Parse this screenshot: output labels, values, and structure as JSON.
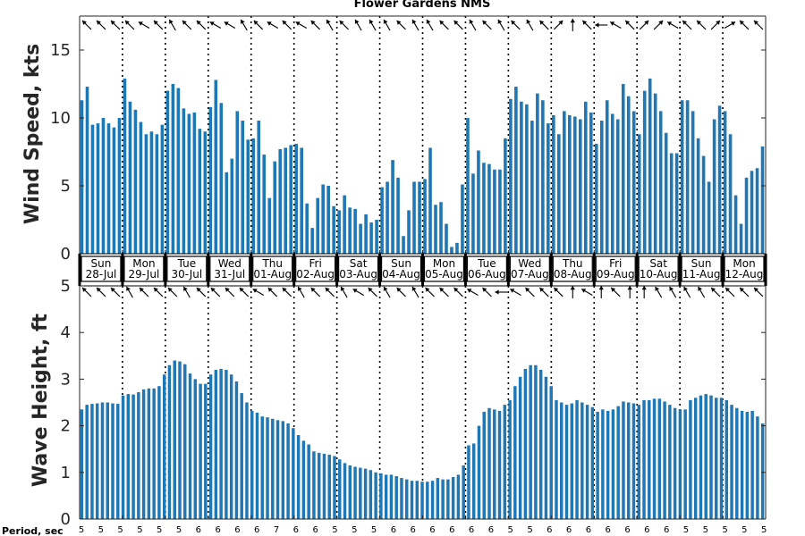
{
  "chart_data": [
    {
      "type": "bar",
      "title": "Flower Gardens NMS",
      "ylabel": "Wind Speed, kts",
      "ylim": [
        0,
        17.5
      ],
      "yticks": [
        "0",
        "5",
        "10",
        "15"
      ],
      "bar_color": "#1f77b4",
      "values": [
        11.3,
        12.3,
        9.5,
        9.6,
        10,
        9.6,
        9.3,
        10,
        12.9,
        11.2,
        10.6,
        9.7,
        8.8,
        9,
        8.8,
        9.5,
        12,
        12.5,
        12.2,
        10.7,
        10.3,
        10.4,
        9.2,
        9,
        10.8,
        12.8,
        11.1,
        6,
        7,
        10.5,
        9.8,
        8.4,
        8.5,
        9.8,
        7.3,
        4.1,
        6.8,
        7.7,
        7.8,
        8,
        8.1,
        7.8,
        3.7,
        1.9,
        4.1,
        5.1,
        5,
        3.5,
        3.2,
        4.3,
        3.4,
        3.3,
        2.2,
        2.9,
        2.3,
        2.5,
        4.9,
        5.3,
        6.9,
        5.6,
        1.3,
        3.2,
        5.3,
        5.3,
        5.5,
        7.8,
        3.6,
        3.8,
        2.2,
        0.5,
        0.8,
        5.1,
        10,
        5.9,
        7.6,
        6.7,
        6.6,
        6.2,
        6.2,
        8.5,
        11.4,
        12.3,
        11.2,
        11,
        9.8,
        11.8,
        11.3,
        9.6,
        10.2,
        8.8,
        10.5,
        10.2,
        10.1,
        9.9,
        11.2,
        10.4,
        8.1,
        9.8,
        11.3,
        10.3,
        9.9,
        12.5,
        11.6,
        10.5,
        8.8,
        12,
        12.9,
        11.8,
        10.5,
        8.9,
        7.4,
        7.4,
        11.3,
        11.3,
        10.5,
        8.5,
        7.2,
        5.3,
        9.9,
        10.9,
        10.5,
        8.8,
        4.3,
        2.2,
        5.6,
        6.1,
        6.3,
        7.9
      ]
    },
    {
      "type": "bar",
      "ylabel": "Wave Height, ft",
      "ylim": [
        0,
        5
      ],
      "yticks": [
        "0",
        "1",
        "2",
        "3",
        "4",
        "5"
      ],
      "bar_color": "#1f77b4",
      "values": [
        2.35,
        2.45,
        2.47,
        2.48,
        2.5,
        2.5,
        2.48,
        2.47,
        2.65,
        2.68,
        2.67,
        2.72,
        2.78,
        2.8,
        2.8,
        2.85,
        3.1,
        3.3,
        3.4,
        3.38,
        3.32,
        3.12,
        3.0,
        2.9,
        2.9,
        3.1,
        3.2,
        3.22,
        3.2,
        3.1,
        2.95,
        2.7,
        2.5,
        2.32,
        2.28,
        2.2,
        2.18,
        2.15,
        2.12,
        2.1,
        2.05,
        1.95,
        1.8,
        1.68,
        1.6,
        1.45,
        1.42,
        1.4,
        1.38,
        1.35,
        1.28,
        1.2,
        1.15,
        1.12,
        1.1,
        1.08,
        1.05,
        1.0,
        0.98,
        0.95,
        0.95,
        0.92,
        0.88,
        0.85,
        0.82,
        0.82,
        0.8,
        0.8,
        0.82,
        0.88,
        0.85,
        0.85,
        0.9,
        0.95,
        1.15,
        1.58,
        1.62,
        2.0,
        2.3,
        2.38,
        2.35,
        2.32,
        2.45,
        2.55,
        2.85,
        3.05,
        3.22,
        3.3,
        3.3,
        3.2,
        3.05,
        2.85,
        2.55,
        2.5,
        2.45,
        2.48,
        2.55,
        2.5,
        2.45,
        2.4,
        2.3,
        2.35,
        2.32,
        2.35,
        2.42,
        2.52,
        2.5,
        2.48,
        2.45,
        2.55,
        2.55,
        2.58,
        2.58,
        2.52,
        2.45,
        2.38,
        2.35,
        2.35,
        2.55,
        2.6,
        2.65,
        2.68,
        2.65,
        2.6,
        2.6,
        2.55,
        2.45,
        2.38,
        2.32,
        2.3,
        2.32,
        2.2,
        2.05
      ]
    }
  ],
  "days": [
    {
      "day": "Sun",
      "date": "28-Jul"
    },
    {
      "day": "Mon",
      "date": "29-Jul"
    },
    {
      "day": "Tue",
      "date": "30-Jul"
    },
    {
      "day": "Wed",
      "date": "31-Jul"
    },
    {
      "day": "Thu",
      "date": "01-Aug"
    },
    {
      "day": "Fri",
      "date": "02-Aug"
    },
    {
      "day": "Sat",
      "date": "03-Aug"
    },
    {
      "day": "Sun",
      "date": "04-Aug"
    },
    {
      "day": "Mon",
      "date": "05-Aug"
    },
    {
      "day": "Tue",
      "date": "06-Aug"
    },
    {
      "day": "Wed",
      "date": "07-Aug"
    },
    {
      "day": "Thu",
      "date": "08-Aug"
    },
    {
      "day": "Fri",
      "date": "09-Aug"
    },
    {
      "day": "Sat",
      "date": "10-Aug"
    },
    {
      "day": "Sun",
      "date": "11-Aug"
    },
    {
      "day": "Mon",
      "date": "12-Aug"
    }
  ],
  "wind_direction_top_deg": [
    315,
    315,
    315,
    315,
    300,
    315,
    330,
    315,
    315,
    300,
    300,
    330,
    315,
    300,
    315,
    300,
    315,
    330,
    315,
    330,
    330,
    330,
    315,
    330,
    330,
    315,
    315,
    330,
    315,
    330,
    315,
    330,
    315,
    45,
    0,
    315,
    270,
    300,
    315,
    45,
    45,
    300,
    315,
    315,
    45,
    60,
    315,
    315
  ],
  "wind_direction_mid_deg": [
    315,
    315,
    315,
    330,
    315,
    315,
    315,
    330,
    315,
    315,
    315,
    315,
    300,
    315,
    315,
    330,
    315,
    315,
    330,
    300,
    315,
    330,
    315,
    330,
    315,
    315,
    315,
    300,
    315,
    270,
    300,
    315,
    315,
    315,
    0,
    300,
    0,
    315,
    0,
    0,
    330,
    330,
    330,
    330,
    315,
    315,
    315,
    315
  ],
  "period_title": "Period, sec",
  "periods": [
    "5",
    "5",
    "5",
    "5",
    "5",
    "5",
    "6",
    "6",
    "6",
    "6",
    "7",
    "6",
    "6",
    "5",
    "5",
    "5",
    "6",
    "6",
    "6",
    "6",
    "6",
    "6",
    "5",
    "5",
    "6",
    "6",
    "6",
    "6",
    "6",
    "6",
    "6",
    "5",
    "5",
    "5",
    "5",
    "5"
  ]
}
